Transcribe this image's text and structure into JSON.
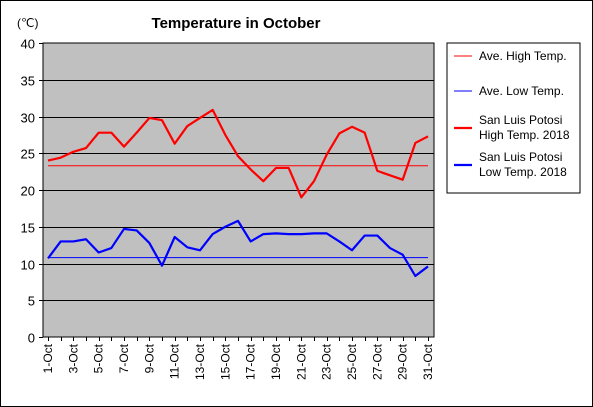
{
  "chart_data": {
    "type": "line",
    "title": "Temperature in October",
    "unit_label": "(℃)",
    "xlabel": "",
    "ylabel": "",
    "ylim": [
      0,
      40
    ],
    "yticks": [
      0,
      5,
      10,
      15,
      20,
      25,
      30,
      35,
      40
    ],
    "grid": true,
    "plot_background": "#c0c0c0",
    "legend_position": "right",
    "x": [
      "1-Oct",
      "2-Oct",
      "3-Oct",
      "4-Oct",
      "5-Oct",
      "6-Oct",
      "7-Oct",
      "8-Oct",
      "9-Oct",
      "10-Oct",
      "11-Oct",
      "12-Oct",
      "13-Oct",
      "14-Oct",
      "15-Oct",
      "16-Oct",
      "17-Oct",
      "18-Oct",
      "19-Oct",
      "20-Oct",
      "21-Oct",
      "22-Oct",
      "23-Oct",
      "24-Oct",
      "25-Oct",
      "26-Oct",
      "27-Oct",
      "28-Oct",
      "29-Oct",
      "30-Oct",
      "31-Oct"
    ],
    "x_tick_labels": [
      "1-Oct",
      "3-Oct",
      "5-Oct",
      "7-Oct",
      "9-Oct",
      "11-Oct",
      "13-Oct",
      "15-Oct",
      "17-Oct",
      "19-Oct",
      "21-Oct",
      "23-Oct",
      "25-Oct",
      "27-Oct",
      "29-Oct",
      "31-Oct"
    ],
    "series": [
      {
        "name": "Ave. High Temp.",
        "color": "#ff0000",
        "style": "thin",
        "values": [
          23.3,
          23.3,
          23.3,
          23.3,
          23.3,
          23.3,
          23.3,
          23.3,
          23.3,
          23.3,
          23.3,
          23.3,
          23.3,
          23.3,
          23.3,
          23.3,
          23.3,
          23.3,
          23.3,
          23.3,
          23.3,
          23.3,
          23.3,
          23.3,
          23.3,
          23.3,
          23.3,
          23.3,
          23.3,
          23.3,
          23.3
        ]
      },
      {
        "name": "Ave. Low Temp.",
        "color": "#0000ff",
        "style": "thin",
        "values": [
          10.8,
          10.8,
          10.8,
          10.8,
          10.8,
          10.8,
          10.8,
          10.8,
          10.8,
          10.8,
          10.8,
          10.8,
          10.8,
          10.8,
          10.8,
          10.8,
          10.8,
          10.8,
          10.8,
          10.8,
          10.8,
          10.8,
          10.8,
          10.8,
          10.8,
          10.8,
          10.8,
          10.8,
          10.8,
          10.8,
          10.8
        ]
      },
      {
        "name": "San Luis Potosi High Temp. 2018",
        "legend_lines": [
          "San Luis Potosi",
          "High Temp. 2018"
        ],
        "color": "#ff0000",
        "style": "thick",
        "values": [
          24.0,
          24.4,
          25.2,
          25.7,
          27.8,
          27.8,
          25.9,
          27.8,
          29.8,
          29.5,
          26.3,
          28.7,
          29.8,
          30.9,
          27.5,
          24.6,
          22.8,
          21.2,
          23.0,
          23.0,
          19.0,
          21.2,
          24.8,
          27.7,
          28.6,
          27.8,
          22.6,
          22.0,
          21.4,
          26.4,
          27.3
        ]
      },
      {
        "name": "San Luis Potosi Low Temp. 2018",
        "legend_lines": [
          "San Luis Potosi",
          "Low Temp. 2018"
        ],
        "color": "#0000ff",
        "style": "thick",
        "values": [
          10.7,
          13.0,
          13.0,
          13.3,
          11.5,
          12.1,
          14.7,
          14.5,
          12.8,
          9.7,
          13.6,
          12.2,
          11.8,
          14.0,
          15.0,
          15.8,
          13.0,
          14.0,
          14.1,
          14.0,
          14.0,
          14.1,
          14.1,
          13.0,
          11.8,
          13.8,
          13.8,
          12.1,
          11.2,
          8.3,
          9.6
        ]
      }
    ]
  }
}
